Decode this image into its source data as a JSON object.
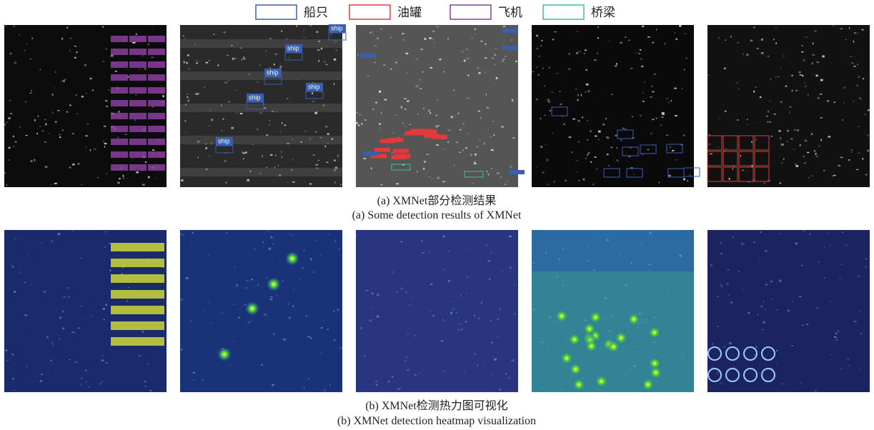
{
  "legend": [
    {
      "label": "船只",
      "color": "#3a5fb0"
    },
    {
      "label": "油罐",
      "color": "#e03a3a"
    },
    {
      "label": "飞机",
      "color": "#8a3fa0"
    },
    {
      "label": "桥梁",
      "color": "#3fbfa5"
    }
  ],
  "figure_a": {
    "caption_zh": "(a) XMNet部分检测结果",
    "caption_en": "(a) Some detection results of XMNet",
    "ship_labels": [
      "ship",
      "ship",
      "ship",
      "ship",
      "ship",
      "ship"
    ]
  },
  "figure_b": {
    "caption_zh": "(b) XMNet检测热力图可视化",
    "caption_en": "(b) XMNet detection heatmap visualization"
  }
}
